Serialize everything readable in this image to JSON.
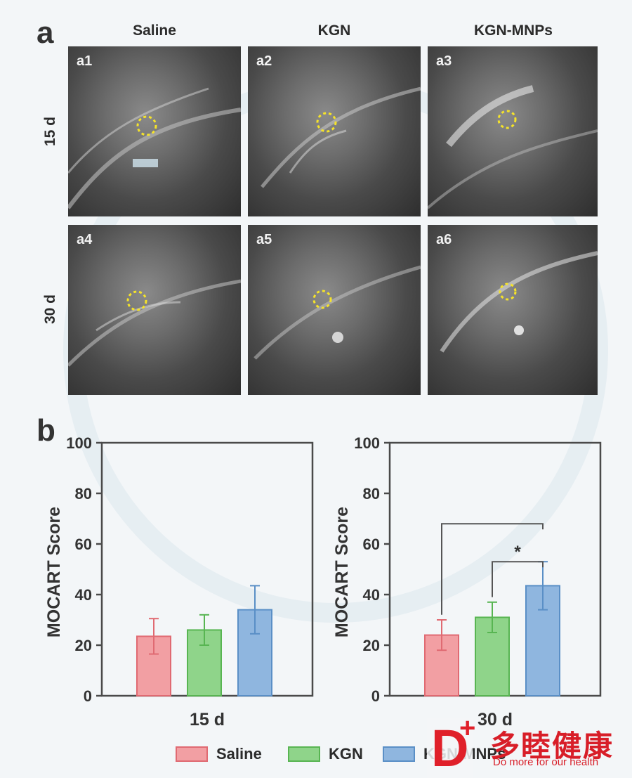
{
  "panel_a": {
    "letter": "a",
    "columns": [
      "Saline",
      "KGN",
      "KGN-MNPs"
    ],
    "rows": [
      "15 d",
      "30 d"
    ],
    "images": [
      "a1",
      "a2",
      "a3",
      "a4",
      "a5",
      "a6"
    ]
  },
  "panel_b": {
    "letter": "b"
  },
  "legend": [
    {
      "label": "Saline",
      "color": "#f29fa3",
      "border": "#e06a72"
    },
    {
      "label": "KGN",
      "color": "#8fd48a",
      "border": "#58b552"
    },
    {
      "label": "KGN-MNPs",
      "color": "#8fb6df",
      "border": "#5a8fc6"
    }
  ],
  "logo": {
    "mark": "D",
    "chinese": "多睦健康",
    "tagline": "Do more for our health"
  },
  "chart_data": [
    {
      "type": "bar",
      "title": "15 d",
      "ylabel": "MOCART Score",
      "ylim": [
        0,
        100
      ],
      "yticks": [
        "0",
        "20",
        "40",
        "60",
        "80",
        "100"
      ],
      "categories": [
        "Saline",
        "KGN",
        "KGN-MNPs"
      ],
      "values": [
        23.5,
        26,
        34
      ],
      "errors": [
        7,
        6,
        9.5
      ],
      "colors": [
        "#f29fa3",
        "#8fd48a",
        "#8fb6df"
      ],
      "borders": [
        "#e06a72",
        "#58b552",
        "#5a8fc6"
      ]
    },
    {
      "type": "bar",
      "title": "30 d",
      "ylabel": "MOCART Score",
      "ylim": [
        0,
        100
      ],
      "yticks": [
        "0",
        "20",
        "40",
        "60",
        "80",
        "100"
      ],
      "categories": [
        "Saline",
        "KGN",
        "KGN-MNPs"
      ],
      "values": [
        24,
        31,
        43.5
      ],
      "errors": [
        6,
        6,
        9.5
      ],
      "colors": [
        "#f29fa3",
        "#8fd48a",
        "#8fb6df"
      ],
      "borders": [
        "#e06a72",
        "#58b552",
        "#5a8fc6"
      ],
      "significance": [
        {
          "from": 0,
          "to": 2,
          "label": ""
        },
        {
          "from": 1,
          "to": 2,
          "label": "*"
        }
      ]
    }
  ]
}
